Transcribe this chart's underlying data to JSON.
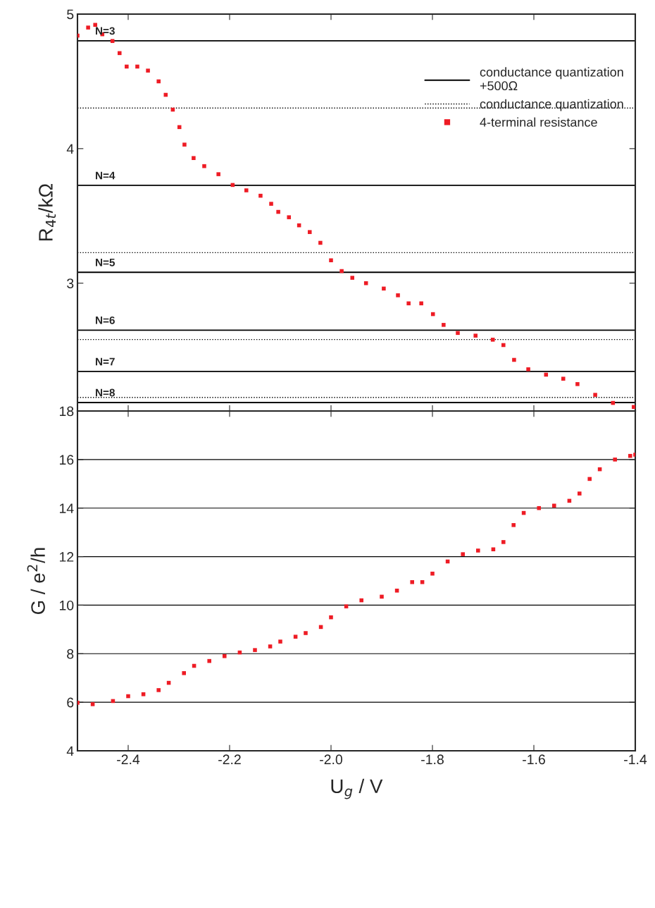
{
  "chart_data": [
    {
      "type": "scatter",
      "ylabel": "R$_{4t}$/kΩ",
      "xlim": [
        -2.5,
        -1.4
      ],
      "xticks": [
        -2.4,
        -2.2,
        -2.0,
        -1.8,
        -1.6,
        -1.4
      ],
      "ylim": [
        2.05,
        5
      ],
      "yticks": [
        3,
        4,
        5
      ],
      "tick_labels": "y",
      "legend": "top right",
      "annotations": [
        "N=3",
        "N=4",
        "N=5",
        "N=6",
        "N=7",
        "N=8"
      ],
      "series": [
        {
          "name": "conductance quantization\n+500Ω",
          "type": "line",
          "line_style": "solid",
          "color": "#000000",
          "x": [
            -2.5,
            -1.4
          ],
          "values": [
            4.802,
            4.802
          ]
        },
        {
          "type": "line",
          "line_style": "solid",
          "color": "#000000",
          "x": [
            -2.5,
            -1.4
          ],
          "values": [
            3.727,
            3.727
          ]
        },
        {
          "type": "line",
          "line_style": "solid",
          "color": "#000000",
          "x": [
            -2.5,
            -1.4
          ],
          "values": [
            3.081,
            3.081
          ]
        },
        {
          "type": "line",
          "line_style": "solid",
          "color": "#000000",
          "x": [
            -2.5,
            -1.4
          ],
          "values": [
            2.651,
            2.651
          ]
        },
        {
          "type": "line",
          "line_style": "solid",
          "color": "#000000",
          "x": [
            -2.5,
            -1.4
          ],
          "values": [
            2.344,
            2.344
          ]
        },
        {
          "type": "line",
          "line_style": "solid",
          "color": "#000000",
          "x": [
            -2.5,
            -1.4
          ],
          "values": [
            2.113,
            2.113
          ]
        },
        {
          "name": "conductance quantization",
          "type": "line",
          "line_style": "dotted",
          "color": "#000000",
          "x": [
            -2.5,
            -1.4
          ],
          "values": [
            4.302,
            4.302
          ]
        },
        {
          "type": "line",
          "line_style": "dotted",
          "color": "#000000",
          "x": [
            -2.5,
            -1.4
          ],
          "values": [
            3.227,
            3.227
          ]
        },
        {
          "type": "line",
          "line_style": "dotted",
          "color": "#000000",
          "x": [
            -2.5,
            -1.4
          ],
          "values": [
            2.581,
            2.581
          ]
        },
        {
          "type": "line",
          "line_style": "dotted",
          "color": "#000000",
          "x": [
            -2.5,
            -1.4
          ],
          "values": [
            2.151,
            2.151
          ]
        },
        {
          "name": "4-terminal resistance",
          "marker": "square",
          "color": "#ee1c25",
          "x": [
            -2.5,
            -2.479,
            -2.465,
            -2.451,
            -2.431,
            -2.417,
            -2.403,
            -2.382,
            -2.361,
            -2.34,
            -2.326,
            -2.312,
            -2.299,
            -2.289,
            -2.271,
            -2.25,
            -2.222,
            -2.194,
            -2.167,
            -2.139,
            -2.118,
            -2.104,
            -2.083,
            -2.063,
            -2.042,
            -2.021,
            -2.0,
            -1.979,
            -1.958,
            -1.931,
            -1.896,
            -1.868,
            -1.847,
            -1.822,
            -1.799,
            -1.778,
            -1.75,
            -1.715,
            -1.681,
            -1.66,
            -1.639,
            -1.611,
            -1.576,
            -1.542,
            -1.514,
            -1.479,
            -1.444,
            -1.403
          ],
          "values": [
            4.84,
            4.9,
            4.92,
            4.85,
            4.8,
            4.71,
            4.61,
            4.61,
            4.58,
            4.5,
            4.4,
            4.29,
            4.16,
            4.03,
            3.93,
            3.87,
            3.81,
            3.73,
            3.69,
            3.65,
            3.59,
            3.53,
            3.49,
            3.43,
            3.38,
            3.3,
            3.17,
            3.09,
            3.04,
            3.0,
            2.96,
            2.91,
            2.85,
            2.85,
            2.77,
            2.69,
            2.63,
            2.61,
            2.58,
            2.54,
            2.43,
            2.36,
            2.32,
            2.29,
            2.25,
            2.17,
            2.11,
            2.08
          ]
        }
      ]
    },
    {
      "type": "scatter",
      "xlabel": "U$_{g}$ / V",
      "ylabel": "G / e$^{2}$/h",
      "xlim": [
        -2.5,
        -1.4
      ],
      "xticks": [
        -2.4,
        -2.2,
        {
          "value": -2.0,
          "label": "-2.0"
        },
        -1.8,
        -1.6,
        -1.4
      ],
      "ylim": [
        4,
        18
      ],
      "yticks": [
        4,
        6,
        8,
        10,
        12,
        14,
        16,
        18
      ],
      "grid": "y",
      "series": [
        {
          "marker": "square",
          "color": "#ee1c25",
          "x": [
            -2.5,
            -2.47,
            -2.43,
            -2.4,
            -2.37,
            -2.34,
            -2.32,
            -2.29,
            -2.27,
            -2.24,
            -2.21,
            -2.18,
            -2.15,
            -2.12,
            -2.1,
            -2.07,
            -2.05,
            -2.02,
            -2.0,
            -1.97,
            -1.94,
            -1.9,
            -1.87,
            -1.84,
            -1.82,
            -1.8,
            -1.77,
            -1.74,
            -1.71,
            -1.68,
            -1.66,
            -1.64,
            -1.62,
            -1.59,
            -1.56,
            -1.53,
            -1.51,
            -1.49,
            -1.47,
            -1.44,
            -1.41,
            -1.4
          ],
          "values": [
            5.98,
            5.92,
            6.05,
            6.25,
            6.33,
            6.5,
            6.8,
            7.2,
            7.5,
            7.7,
            7.9,
            8.05,
            8.15,
            8.3,
            8.5,
            8.7,
            8.85,
            9.1,
            9.5,
            9.95,
            10.2,
            10.35,
            10.6,
            10.95,
            10.95,
            11.3,
            11.8,
            12.1,
            12.25,
            12.3,
            12.6,
            13.3,
            13.8,
            14.0,
            14.1,
            14.3,
            14.6,
            15.2,
            15.6,
            16.0,
            16.15,
            16.2
          ]
        }
      ]
    }
  ]
}
